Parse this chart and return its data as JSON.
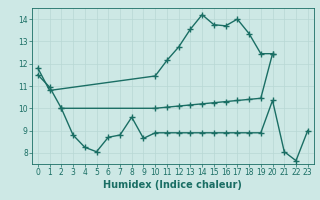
{
  "background_color": "#cde8e5",
  "grid_color": "#b8d8d4",
  "line_color": "#1a6e64",
  "line_width": 1.0,
  "marker": "+",
  "marker_size": 4,
  "marker_lw": 1.0,
  "xlabel": "Humidex (Indice chaleur)",
  "xlabel_fontsize": 7,
  "tick_fontsize": 5.5,
  "ylim": [
    7.5,
    14.5
  ],
  "xlim": [
    -0.5,
    23.5
  ],
  "yticks": [
    8,
    9,
    10,
    11,
    12,
    13,
    14
  ],
  "xticks": [
    0,
    1,
    2,
    3,
    4,
    5,
    6,
    7,
    8,
    9,
    10,
    11,
    12,
    13,
    14,
    15,
    16,
    17,
    18,
    19,
    20,
    21,
    22,
    23
  ],
  "series1_x": [
    0,
    1,
    10,
    11,
    12,
    13,
    14,
    15,
    16,
    17,
    18,
    19,
    20
  ],
  "series1_y": [
    11.8,
    10.8,
    11.45,
    12.15,
    12.75,
    13.55,
    14.2,
    13.75,
    13.7,
    14.0,
    13.35,
    12.45,
    12.45
  ],
  "series2_x": [
    0,
    1,
    2,
    10,
    11,
    12,
    13,
    14,
    15,
    16,
    17,
    18,
    19,
    20
  ],
  "series2_y": [
    11.5,
    10.95,
    10.0,
    10.0,
    10.05,
    10.1,
    10.15,
    10.2,
    10.25,
    10.3,
    10.35,
    10.4,
    10.45,
    12.45
  ],
  "series3_x": [
    2,
    3,
    4,
    5,
    6,
    7,
    8,
    9,
    10,
    11,
    12,
    13,
    14,
    15,
    16,
    17,
    18,
    19,
    20,
    21,
    22,
    23
  ],
  "series3_y": [
    10.0,
    8.8,
    8.25,
    8.05,
    8.7,
    8.8,
    9.6,
    8.65,
    8.9,
    8.9,
    8.9,
    8.9,
    8.9,
    8.9,
    8.9,
    8.9,
    8.9,
    8.9,
    10.35,
    8.05,
    7.65,
    9.0
  ]
}
